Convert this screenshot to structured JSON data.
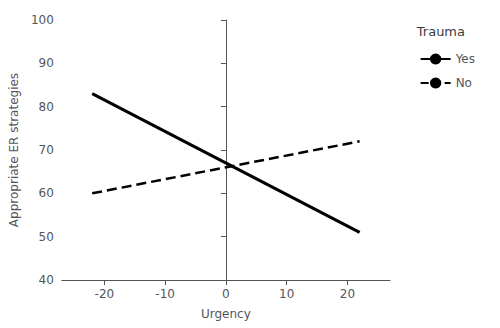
{
  "chart_data": {
    "type": "line",
    "xlabel": "Urgency",
    "ylabel": "Appropriate ER strategies",
    "legend_title": "Trauma",
    "x": [
      -22,
      22
    ],
    "series": [
      {
        "name": "Yes",
        "color": "#000000",
        "line_style": "solid",
        "values": [
          83,
          51
        ]
      },
      {
        "name": "No",
        "color": "#000000",
        "line_style": "dashed",
        "values": [
          60,
          72
        ]
      }
    ],
    "xlim": [
      -27,
      27
    ],
    "xticks": [
      -20,
      -10,
      0,
      10,
      20
    ],
    "ylim": [
      40,
      100
    ],
    "yticks": [
      40,
      50,
      60,
      70,
      80,
      90,
      100
    ],
    "grid": false,
    "legend": "right"
  }
}
